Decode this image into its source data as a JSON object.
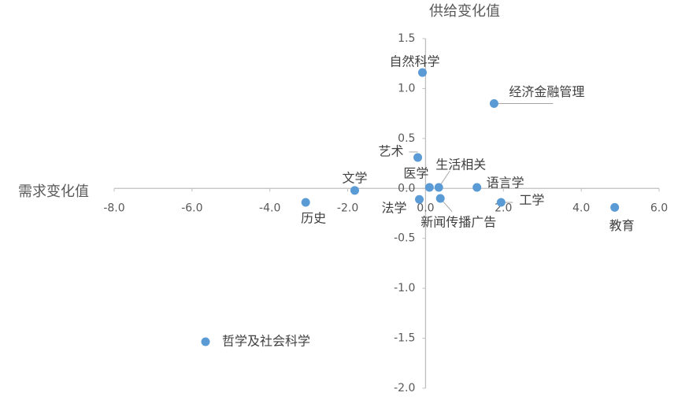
{
  "chart_data": {
    "type": "scatter",
    "x_axis_label": "需求变化值",
    "y_axis_label": "供给变化值",
    "xlim": [
      -8,
      6
    ],
    "xticks": [
      {
        "value": -8,
        "label": "-8.0"
      },
      {
        "value": -6,
        "label": "-6.0"
      },
      {
        "value": -4,
        "label": "-4.0"
      },
      {
        "value": -2,
        "label": "-2.0"
      },
      {
        "value": 0,
        "label": "0.0"
      },
      {
        "value": 2,
        "label": "2.0"
      },
      {
        "value": 4,
        "label": "4.0"
      },
      {
        "value": 6,
        "label": "6.0"
      }
    ],
    "ylim": [
      -2,
      1.5
    ],
    "yticks": [
      {
        "value": -2,
        "label": "-2.0"
      },
      {
        "value": -1.5,
        "label": "-1.5"
      },
      {
        "value": -1,
        "label": "-1.0"
      },
      {
        "value": -0.5,
        "label": "-0.5"
      },
      {
        "value": 0,
        "label": "0.0"
      },
      {
        "value": 0.5,
        "label": "0.5"
      },
      {
        "value": 1,
        "label": "1.0"
      },
      {
        "value": 1.5,
        "label": "1.5"
      }
    ],
    "legend_position": "bottom-left",
    "series": [
      {
        "name": "哲学及社会科学",
        "color": "#5b9bd5",
        "labels": [
          "自然科学",
          "经济金融管理",
          "艺术",
          "文学",
          "历史",
          "医学",
          "生活相关",
          "语言学",
          "法学",
          "新闻传播广告",
          "工学",
          "教育"
        ],
        "x": [
          -0.08,
          1.76,
          -0.2,
          -1.82,
          -3.08,
          0.1,
          0.34,
          1.32,
          -0.16,
          0.38,
          1.94,
          4.86
        ],
        "values": [
          1.16,
          0.85,
          0.31,
          -0.02,
          -0.14,
          0.01,
          0.01,
          0.01,
          -0.11,
          -0.1,
          -0.14,
          -0.19
        ]
      }
    ]
  }
}
